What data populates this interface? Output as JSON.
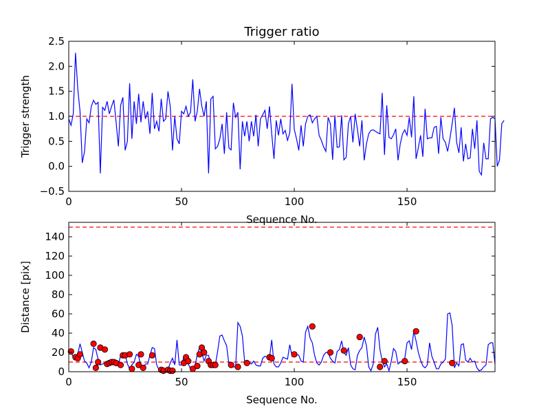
{
  "chart_data": [
    {
      "type": "line",
      "title": "Trigger ratio",
      "xlabel": "Sequence No.",
      "ylabel": "Trigger strength",
      "xlim": [
        0,
        189
      ],
      "ylim": [
        -0.5,
        2.5
      ],
      "xticks": [
        0,
        50,
        100,
        150
      ],
      "yticks": [
        -0.5,
        0.0,
        0.5,
        1.0,
        1.5,
        2.0,
        2.5
      ],
      "ytick_labels": [
        "−0.5",
        "0.0",
        "0.5",
        "1.0",
        "1.5",
        "2.0",
        "2.5"
      ],
      "grid": false,
      "line_color": "#0000ff",
      "reference_lines": [
        {
          "y": 1.0,
          "color": "#ff0000",
          "style": "dashed"
        }
      ],
      "series": [
        {
          "values": [
            0.95,
            0.82,
            1.05,
            2.27,
            1.55,
            1.1,
            0.07,
            0.3,
            0.95,
            0.87,
            1.2,
            1.32,
            1.24,
            1.28,
            -0.14,
            1.18,
            1.12,
            1.3,
            1.05,
            1.2,
            1.33,
            0.88,
            0.4,
            1.22,
            1.38,
            0.32,
            0.5,
            1.66,
            0.55,
            1.3,
            0.85,
            1.45,
            0.88,
            1.3,
            0.95,
            1.1,
            0.65,
            1.47,
            0.75,
            0.9,
            0.7,
            1.35,
            0.9,
            0.95,
            1.5,
            1.2,
            0.32,
            1.0,
            0.55,
            0.45,
            1.1,
            1.05,
            1.2,
            1.0,
            1.08,
            1.74,
            0.9,
            1.1,
            1.55,
            1.2,
            1.0,
            1.3,
            -0.14,
            1.35,
            1.4,
            0.35,
            0.4,
            0.55,
            0.85,
            0.25,
            1.08,
            0.37,
            0.33,
            1.27,
            0.98,
            1.08,
            -0.06,
            0.9,
            0.6,
            0.9,
            0.5,
            0.9,
            0.6,
            1.03,
            0.4,
            0.95,
            1.03,
            1.12,
            0.75,
            1.2,
            0.65,
            0.15,
            0.92,
            0.62,
            0.95,
            0.65,
            0.72,
            0.52,
            0.67,
            1.65,
            0.74,
            0.55,
            0.32,
            0.82,
            0.4,
            0.85,
            1.0,
            1.03,
            0.87,
            0.95,
            1.0,
            0.62,
            0.52,
            0.39,
            0.3,
            0.98,
            0.85,
            0.13,
            1.02,
            0.38,
            0.39,
            1.02,
            0.13,
            0.18,
            0.85,
            1.0,
            0.48,
            1.05,
            0.74,
            0.4,
            0.92,
            0.12,
            0.45,
            0.65,
            0.72,
            0.73,
            0.7,
            0.67,
            0.65,
            1.47,
            0.23,
            1.22,
            0.58,
            0.55,
            0.63,
            0.75,
            0.12,
            0.45,
            0.65,
            0.73,
            0.62,
            0.98,
            0.58,
            1.4,
            0.15,
            0.37,
            0.62,
            0.19,
            1.15,
            0.55,
            0.57,
            0.57,
            0.78,
            0.8,
            0.25,
            0.98,
            0.55,
            0.48,
            0.3,
            0.55,
            0.85,
            1.17,
            0.48,
            0.27,
            0.78,
            0.1,
            0.45,
            0.15,
            0.17,
            0.75,
            0.35,
            0.92,
            -0.1,
            -0.17,
            0.47,
            0.15,
            0.15,
            0.95,
            0.98,
            0.95,
            0.0,
            0.13,
            0.85,
            0.92
          ]
        }
      ]
    },
    {
      "type": "line",
      "title": "",
      "xlabel": "Sequence No.",
      "ylabel": "Distance [pix]",
      "xlim": [
        0,
        189
      ],
      "ylim": [
        0,
        155
      ],
      "xticks": [
        0,
        50,
        100,
        150
      ],
      "yticks": [
        0,
        20,
        40,
        60,
        80,
        100,
        120,
        140
      ],
      "grid": false,
      "line_color": "#0000ff",
      "marker_color": "#ff0000",
      "reference_lines": [
        {
          "y": 150,
          "color": "#ff0000",
          "style": "dashed"
        },
        {
          "y": 10,
          "color": "#ff0000",
          "style": "dashed"
        }
      ],
      "series": [
        {
          "values": [
            23,
            21,
            15,
            14,
            18,
            29,
            20,
            11,
            9,
            4,
            10,
            25,
            23,
            13,
            7,
            8,
            9,
            10,
            10,
            9,
            8,
            6,
            7,
            17,
            17,
            18,
            8,
            3,
            7,
            10,
            18,
            16,
            5,
            4,
            8,
            8,
            17,
            25,
            24,
            7,
            2,
            2,
            4,
            1,
            2,
            9,
            14,
            7,
            33,
            7,
            7,
            15,
            12,
            8,
            3,
            4,
            6,
            18,
            25,
            20,
            11,
            17,
            17,
            7,
            7,
            7,
            21,
            37,
            38,
            32,
            27,
            8,
            7,
            5,
            5,
            51,
            47,
            37,
            10,
            9,
            9,
            8,
            11,
            7,
            6,
            6,
            14,
            16,
            15,
            14,
            33,
            8,
            5,
            5,
            9,
            15,
            14,
            13,
            28,
            16,
            18,
            18,
            17,
            11,
            10,
            41,
            47,
            35,
            30,
            17,
            9,
            7,
            10,
            17,
            20,
            20,
            14,
            11,
            9,
            21,
            23,
            32,
            20,
            17,
            25,
            7,
            3,
            2,
            17,
            22,
            25,
            36,
            27,
            5,
            1,
            8,
            39,
            46,
            23,
            11,
            5,
            8,
            1,
            11,
            24,
            21,
            8,
            10,
            11,
            14,
            30,
            32,
            23,
            42,
            32,
            20,
            12,
            6,
            4,
            7,
            30,
            16,
            10,
            3,
            3,
            8,
            10,
            13,
            60,
            61,
            48,
            4,
            9,
            6,
            28,
            29,
            12,
            10,
            14,
            10,
            11,
            4,
            1,
            2,
            5,
            7,
            28,
            30,
            30,
            8
          ]
        }
      ],
      "markers": {
        "x": [
          1,
          3,
          4,
          5,
          11,
          12,
          13,
          14,
          16,
          17,
          18,
          19,
          20,
          21,
          23,
          24,
          25,
          27,
          28,
          31,
          32,
          33,
          37,
          41,
          42,
          44,
          45,
          46,
          51,
          52,
          53,
          55,
          57,
          58,
          59,
          60,
          62,
          63,
          64,
          65,
          72,
          75,
          79,
          89,
          90,
          100,
          108,
          116,
          122,
          129,
          138,
          140,
          149,
          154,
          170
        ],
        "y": [
          21,
          15,
          14,
          18,
          29,
          4,
          10,
          25,
          23,
          8,
          9,
          10,
          10,
          9,
          7,
          17,
          17,
          18,
          3,
          7,
          18,
          4,
          17,
          2,
          1,
          2,
          1,
          1,
          9,
          15,
          11,
          3,
          6,
          18,
          25,
          20,
          11,
          7,
          7,
          7,
          7,
          5,
          9,
          15,
          14,
          18,
          47,
          20,
          22,
          36,
          5,
          11,
          11,
          42,
          9
        ]
      }
    }
  ]
}
